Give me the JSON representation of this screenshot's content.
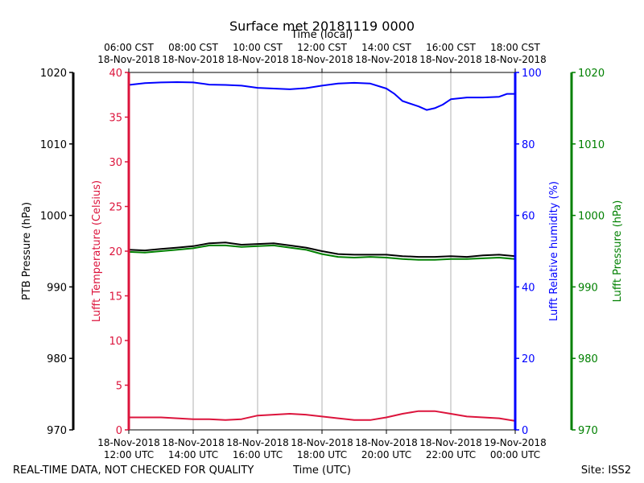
{
  "chart_data": {
    "type": "line",
    "title": "Surface met 20181119 0000",
    "top_axis_label": "Time (local)",
    "top_ticks": [
      {
        "time": "06:00 CST",
        "date": "18-Nov-2018"
      },
      {
        "time": "08:00 CST",
        "date": "18-Nov-2018"
      },
      {
        "time": "10:00 CST",
        "date": "18-Nov-2018"
      },
      {
        "time": "12:00 CST",
        "date": "18-Nov-2018"
      },
      {
        "time": "14:00 CST",
        "date": "18-Nov-2018"
      },
      {
        "time": "16:00 CST",
        "date": "18-Nov-2018"
      },
      {
        "time": "18:00 CST",
        "date": "18-Nov-2018"
      }
    ],
    "x_hours_utc": [
      12,
      14,
      16,
      18,
      20,
      22,
      24
    ],
    "xlim_hours_utc": [
      12,
      24
    ],
    "bottom_ticks": [
      {
        "date": "18-Nov-2018",
        "time": "12:00 UTC"
      },
      {
        "date": "18-Nov-2018",
        "time": "14:00 UTC"
      },
      {
        "date": "18-Nov-2018",
        "time": "16:00 UTC"
      },
      {
        "date": "18-Nov-2018",
        "time": "18:00 UTC"
      },
      {
        "date": "18-Nov-2018",
        "time": "20:00 UTC"
      },
      {
        "date": "18-Nov-2018",
        "time": "22:00 UTC"
      },
      {
        "date": "19-Nov-2018",
        "time": "00:00 UTC"
      }
    ],
    "xlabel": "Time (UTC)",
    "grid": "vertical",
    "axes": {
      "ptb_pressure": {
        "label": "PTB Pressure (hPa)",
        "ylim": [
          970,
          1020
        ],
        "ticks": [
          "970",
          "980",
          "990",
          "1000",
          "1010",
          "1020"
        ],
        "color": "#000000"
      },
      "temperature": {
        "label": "Lufft Temperature (Celsius)",
        "ylim": [
          0,
          40
        ],
        "ticks": [
          "0",
          "5",
          "10",
          "15",
          "20",
          "25",
          "30",
          "35",
          "40"
        ],
        "color": "#dc143c"
      },
      "humidity": {
        "label": "Lufft Relative humidity (%)",
        "ylim": [
          0,
          100
        ],
        "ticks": [
          "0",
          "20",
          "40",
          "60",
          "80",
          "100"
        ],
        "color": "#0000ff"
      },
      "lufft_pressure": {
        "label": "Lufft Pressure (hPa)",
        "ylim": [
          970,
          1020
        ],
        "ticks": [
          "970",
          "980",
          "990",
          "1000",
          "1010",
          "1020"
        ],
        "color": "#008000"
      }
    },
    "series": [
      {
        "name": "PTB Pressure",
        "axis": "ptb_pressure",
        "color": "#000000",
        "x": [
          12.0,
          12.5,
          13.0,
          13.5,
          14.0,
          14.5,
          15.0,
          15.5,
          16.0,
          16.5,
          17.0,
          17.5,
          18.0,
          18.5,
          19.0,
          19.5,
          20.0,
          20.5,
          21.0,
          21.5,
          22.0,
          22.5,
          23.0,
          23.5,
          24.0
        ],
        "values": [
          995.2,
          995.1,
          995.3,
          995.5,
          995.7,
          996.1,
          996.2,
          995.9,
          996.0,
          996.1,
          995.8,
          995.5,
          995.0,
          994.6,
          994.5,
          994.5,
          994.5,
          994.3,
          994.2,
          994.2,
          994.3,
          994.2,
          994.4,
          994.5,
          994.3
        ]
      },
      {
        "name": "Lufft Pressure",
        "axis": "lufft_pressure",
        "color": "#008000",
        "x": [
          12.0,
          12.5,
          13.0,
          13.5,
          14.0,
          14.5,
          15.0,
          15.5,
          16.0,
          16.5,
          17.0,
          17.5,
          18.0,
          18.5,
          19.0,
          19.5,
          20.0,
          20.5,
          21.0,
          21.5,
          22.0,
          22.5,
          23.0,
          23.5,
          24.0
        ],
        "values": [
          994.9,
          994.8,
          995.0,
          995.2,
          995.4,
          995.8,
          995.8,
          995.6,
          995.7,
          995.8,
          995.5,
          995.2,
          994.6,
          994.2,
          994.1,
          994.2,
          994.1,
          993.9,
          993.8,
          993.8,
          993.9,
          993.9,
          994.0,
          994.1,
          993.9
        ]
      },
      {
        "name": "Lufft Temperature",
        "axis": "temperature",
        "color": "#dc143c",
        "x": [
          12.0,
          12.5,
          13.0,
          13.5,
          14.0,
          14.5,
          15.0,
          15.5,
          16.0,
          16.5,
          17.0,
          17.5,
          18.0,
          18.5,
          19.0,
          19.5,
          20.0,
          20.5,
          21.0,
          21.5,
          22.0,
          22.5,
          23.0,
          23.5,
          24.0
        ],
        "values": [
          1.4,
          1.4,
          1.4,
          1.3,
          1.2,
          1.2,
          1.1,
          1.2,
          1.6,
          1.7,
          1.8,
          1.7,
          1.5,
          1.3,
          1.1,
          1.1,
          1.4,
          1.8,
          2.1,
          2.1,
          1.8,
          1.5,
          1.4,
          1.3,
          1.0
        ]
      },
      {
        "name": "Lufft Relative humidity",
        "axis": "humidity",
        "color": "#0000ff",
        "x": [
          12.0,
          12.5,
          13.0,
          13.5,
          14.0,
          14.5,
          15.0,
          15.5,
          16.0,
          16.5,
          17.0,
          17.5,
          18.0,
          18.5,
          19.0,
          19.5,
          20.0,
          20.25,
          20.5,
          21.0,
          21.25,
          21.5,
          21.75,
          22.0,
          22.5,
          23.0,
          23.5,
          23.75,
          24.0
        ],
        "values": [
          96.5,
          97.0,
          97.2,
          97.3,
          97.2,
          96.6,
          96.5,
          96.3,
          95.7,
          95.5,
          95.3,
          95.6,
          96.3,
          96.9,
          97.1,
          96.9,
          95.5,
          94.0,
          92.0,
          90.5,
          89.5,
          90.0,
          91.0,
          92.5,
          93.0,
          93.0,
          93.2,
          94.0,
          94.0
        ]
      }
    ]
  },
  "footer": {
    "left": "REAL-TIME DATA, NOT CHECKED FOR QUALITY",
    "center": "Time (UTC)",
    "right": "Site: ISS2"
  }
}
